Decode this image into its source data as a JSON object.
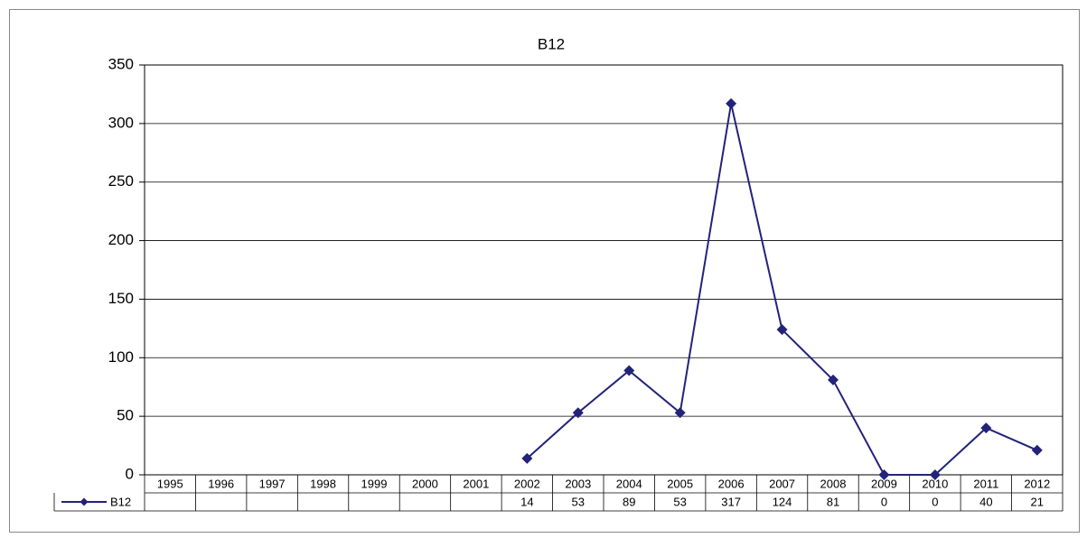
{
  "chart_data": {
    "type": "line",
    "title": "B12",
    "categories": [
      "1995",
      "1996",
      "1997",
      "1998",
      "1999",
      "2000",
      "2001",
      "2002",
      "2003",
      "2004",
      "2005",
      "2006",
      "2007",
      "2008",
      "2009",
      "2010",
      "2011",
      "2012"
    ],
    "series": [
      {
        "name": "B12",
        "color": "#23237a",
        "values": [
          null,
          null,
          null,
          null,
          null,
          null,
          null,
          14,
          53,
          89,
          53,
          317,
          124,
          81,
          0,
          0,
          40,
          21
        ]
      }
    ],
    "ylim": [
      0,
      350
    ],
    "yticks": [
      0,
      50,
      100,
      150,
      200,
      250,
      300,
      350
    ],
    "grid": true,
    "data_table": true
  }
}
